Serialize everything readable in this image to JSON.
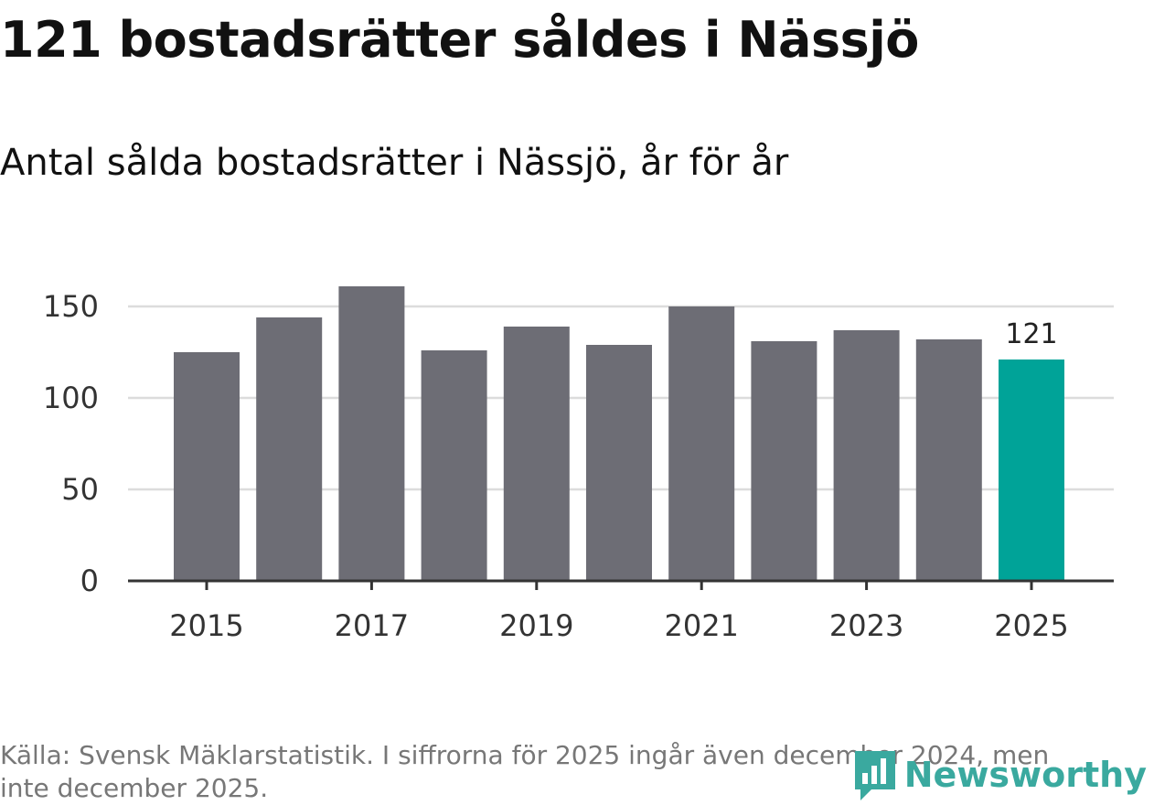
{
  "header": {
    "title": "121 bostadsrätter såldes i Nässjö",
    "subtitle": "Antal sålda bostadsrätter i Nässjö, år för år"
  },
  "footer": {
    "source": "Källa: Svensk Mäklarstatistik. I siffrorna för 2025 ingår även december 2024, men inte december 2025.",
    "brand": "Newsworthy"
  },
  "colors": {
    "bar": "#6d6d75",
    "highlight": "#00a398",
    "grid": "#dcdcdc",
    "axis": "#333333",
    "brand": "#3aa99f"
  },
  "chart_data": {
    "type": "bar",
    "title": "Antal sålda bostadsrätter i Nässjö, år för år",
    "xlabel": "",
    "ylabel": "",
    "categories": [
      "2015",
      "2016",
      "2017",
      "2018",
      "2019",
      "2020",
      "2021",
      "2022",
      "2023",
      "2024",
      "2025"
    ],
    "values": [
      125,
      144,
      161,
      126,
      139,
      129,
      150,
      131,
      137,
      132,
      121
    ],
    "highlight_index": 10,
    "data_labels": [
      {
        "index": 10,
        "text": "121"
      }
    ],
    "x_tick_labels": [
      "2015",
      "2017",
      "2019",
      "2021",
      "2023",
      "2025"
    ],
    "y_ticks": [
      0,
      50,
      100,
      150
    ],
    "ylim": [
      0,
      165
    ],
    "grid": true,
    "legend": "none"
  }
}
